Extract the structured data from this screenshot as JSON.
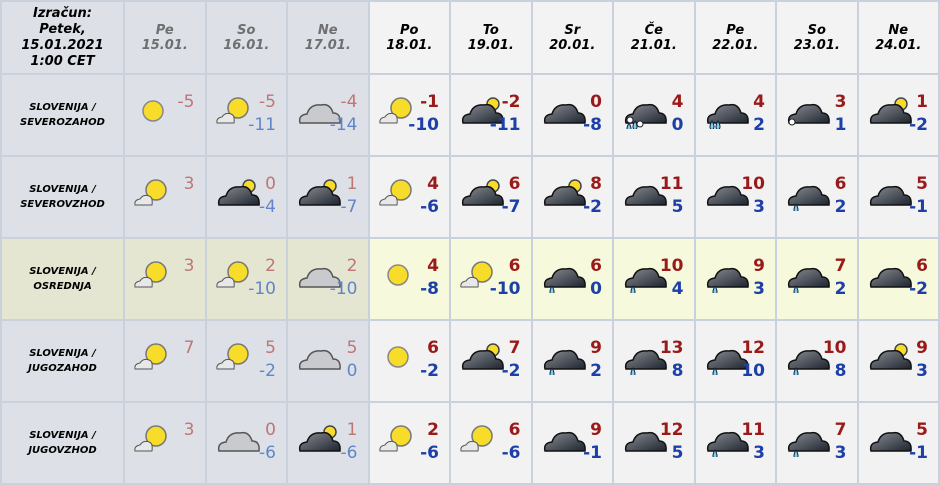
{
  "header": {
    "computed_label": [
      "Izračun:",
      "Petek,",
      "15.01.2021",
      "1:00 CET"
    ]
  },
  "days": [
    {
      "day": "Pe",
      "date": "15.01.",
      "past": true
    },
    {
      "day": "So",
      "date": "16.01.",
      "past": true
    },
    {
      "day": "Ne",
      "date": "17.01.",
      "past": true
    },
    {
      "day": "Po",
      "date": "18.01.",
      "past": false
    },
    {
      "day": "To",
      "date": "19.01.",
      "past": false
    },
    {
      "day": "Sr",
      "date": "20.01.",
      "past": false
    },
    {
      "day": "Če",
      "date": "21.01.",
      "past": false
    },
    {
      "day": "Pe",
      "date": "22.01.",
      "past": false
    },
    {
      "day": "So",
      "date": "23.01.",
      "past": false
    },
    {
      "day": "Ne",
      "date": "24.01.",
      "past": false
    }
  ],
  "rows": [
    {
      "region": [
        "SLOVENIJA /",
        "SEVEROZAHOD"
      ],
      "highlight": false,
      "cells": [
        {
          "icon": "sun",
          "max": "-5",
          "min": ""
        },
        {
          "icon": "sun-light-cloud",
          "max": "-5",
          "min": "-11"
        },
        {
          "icon": "cloud-light",
          "max": "-4",
          "min": "-14"
        },
        {
          "icon": "sun-light-cloud",
          "max": "-1",
          "min": "-10"
        },
        {
          "icon": "cloud-sun",
          "max": "-2",
          "min": "-11"
        },
        {
          "icon": "cloud",
          "max": "0",
          "min": "-8"
        },
        {
          "icon": "cloud-sleet",
          "max": "4",
          "min": "0"
        },
        {
          "icon": "cloud-rain",
          "max": "4",
          "min": "2"
        },
        {
          "icon": "cloud-snow-light",
          "max": "3",
          "min": "1"
        },
        {
          "icon": "cloud-sun",
          "max": "1",
          "min": "-2"
        }
      ]
    },
    {
      "region": [
        "SLOVENIJA /",
        "SEVEROVZHOD"
      ],
      "highlight": false,
      "cells": [
        {
          "icon": "sun-light-cloud",
          "max": "3",
          "min": ""
        },
        {
          "icon": "cloud-sun",
          "max": "0",
          "min": "-4"
        },
        {
          "icon": "cloud-sun",
          "max": "1",
          "min": "-7"
        },
        {
          "icon": "sun-light-cloud",
          "max": "4",
          "min": "-6"
        },
        {
          "icon": "cloud-sun",
          "max": "6",
          "min": "-7"
        },
        {
          "icon": "cloud-sun",
          "max": "8",
          "min": "-2"
        },
        {
          "icon": "cloud",
          "max": "11",
          "min": "5"
        },
        {
          "icon": "cloud",
          "max": "10",
          "min": "3"
        },
        {
          "icon": "cloud-rain-light",
          "max": "6",
          "min": "2"
        },
        {
          "icon": "cloud",
          "max": "5",
          "min": "-1"
        }
      ]
    },
    {
      "region": [
        "SLOVENIJA /",
        "OSREDNJA"
      ],
      "highlight": true,
      "cells": [
        {
          "icon": "sun-light-cloud",
          "max": "3",
          "min": ""
        },
        {
          "icon": "sun-light-cloud",
          "max": "2",
          "min": "-10"
        },
        {
          "icon": "cloud-light",
          "max": "2",
          "min": "-10"
        },
        {
          "icon": "sun",
          "max": "4",
          "min": "-8"
        },
        {
          "icon": "sun-light-cloud",
          "max": "6",
          "min": "-10"
        },
        {
          "icon": "cloud-rain-light",
          "max": "6",
          "min": "0"
        },
        {
          "icon": "cloud-rain-light",
          "max": "10",
          "min": "4"
        },
        {
          "icon": "cloud-rain-light",
          "max": "9",
          "min": "3"
        },
        {
          "icon": "cloud-rain-light",
          "max": "7",
          "min": "2"
        },
        {
          "icon": "cloud",
          "max": "6",
          "min": "-2"
        }
      ]
    },
    {
      "region": [
        "SLOVENIJA /",
        "JUGOZAHOD"
      ],
      "highlight": false,
      "cells": [
        {
          "icon": "sun-light-cloud",
          "max": "7",
          "min": ""
        },
        {
          "icon": "sun-light-cloud",
          "max": "5",
          "min": "-2"
        },
        {
          "icon": "cloud-light",
          "max": "5",
          "min": "0"
        },
        {
          "icon": "sun",
          "max": "6",
          "min": "-2"
        },
        {
          "icon": "cloud-sun",
          "max": "7",
          "min": "-2"
        },
        {
          "icon": "cloud-rain-light",
          "max": "9",
          "min": "2"
        },
        {
          "icon": "cloud-rain-light",
          "max": "13",
          "min": "8"
        },
        {
          "icon": "cloud-rain-light",
          "max": "12",
          "min": "10"
        },
        {
          "icon": "cloud-rain-light",
          "max": "10",
          "min": "8"
        },
        {
          "icon": "cloud-sun",
          "max": "9",
          "min": "3"
        }
      ]
    },
    {
      "region": [
        "SLOVENIJA /",
        "JUGOVZHOD"
      ],
      "highlight": false,
      "cells": [
        {
          "icon": "sun-light-cloud",
          "max": "3",
          "min": ""
        },
        {
          "icon": "cloud-light",
          "max": "0",
          "min": "-6"
        },
        {
          "icon": "cloud-sun",
          "max": "1",
          "min": "-6"
        },
        {
          "icon": "sun-light-cloud",
          "max": "2",
          "min": "-6"
        },
        {
          "icon": "sun-light-cloud",
          "max": "6",
          "min": "-6"
        },
        {
          "icon": "cloud",
          "max": "9",
          "min": "-1"
        },
        {
          "icon": "cloud",
          "max": "12",
          "min": "5"
        },
        {
          "icon": "cloud-rain-light",
          "max": "11",
          "min": "3"
        },
        {
          "icon": "cloud-rain-light",
          "max": "7",
          "min": "3"
        },
        {
          "icon": "cloud",
          "max": "5",
          "min": "-1"
        }
      ]
    }
  ]
}
